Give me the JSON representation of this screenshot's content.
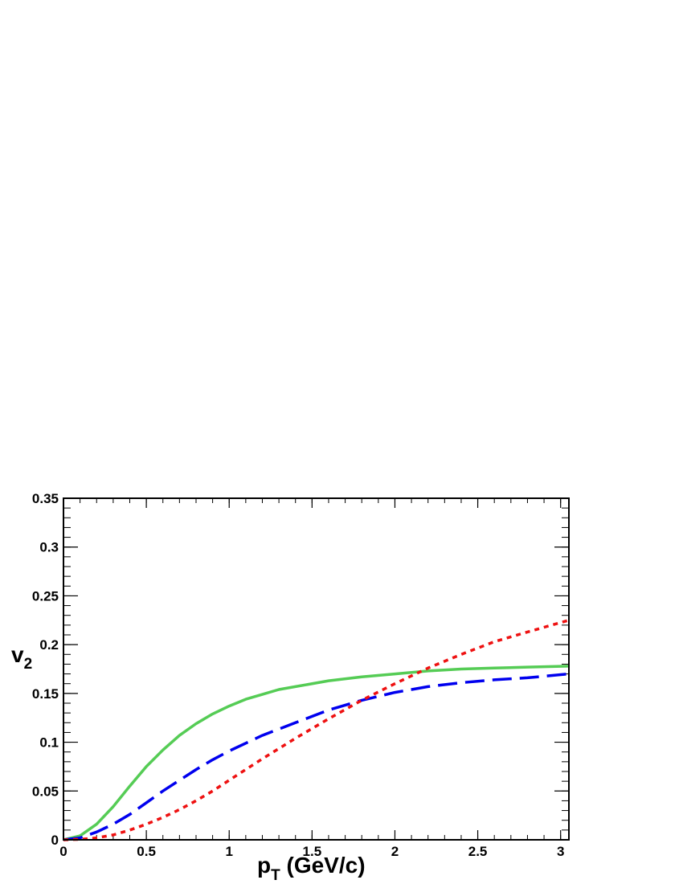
{
  "chart_data": {
    "type": "line",
    "xlabel": {
      "main": "p",
      "sub": "T",
      "unit": " (GeV/c)"
    },
    "ylabel": {
      "main": "v",
      "sub": "2"
    },
    "xlim": [
      0,
      3.05
    ],
    "ylim": [
      0,
      0.35
    ],
    "x_ticks": [
      0,
      0.5,
      1,
      1.5,
      2,
      2.5,
      3
    ],
    "x_tick_labels": [
      "0",
      "0.5",
      "1",
      "1.5",
      "2",
      "2.5",
      "3"
    ],
    "y_ticks": [
      0,
      0.05,
      0.1,
      0.15,
      0.2,
      0.25,
      0.3,
      0.35
    ],
    "y_tick_labels": [
      "0",
      "0.05",
      "0.1",
      "0.15",
      "0.2",
      "0.25",
      "0.3",
      "0.35"
    ],
    "grid": false,
    "legend": "none",
    "series": [
      {
        "color": "#55cc55",
        "style": "solid",
        "x": [
          0,
          0.1,
          0.2,
          0.3,
          0.4,
          0.5,
          0.6,
          0.7,
          0.8,
          0.9,
          1.0,
          1.1,
          1.2,
          1.3,
          1.4,
          1.6,
          1.8,
          2.0,
          2.2,
          2.4,
          2.6,
          2.8,
          3.05
        ],
        "y": [
          0,
          0.004,
          0.016,
          0.034,
          0.055,
          0.075,
          0.092,
          0.107,
          0.119,
          0.129,
          0.137,
          0.144,
          0.149,
          0.154,
          0.157,
          0.163,
          0.167,
          0.17,
          0.173,
          0.175,
          0.176,
          0.177,
          0.178
        ]
      },
      {
        "color": "#0000ee",
        "style": "dashed",
        "x": [
          0,
          0.1,
          0.2,
          0.3,
          0.4,
          0.5,
          0.6,
          0.7,
          0.8,
          0.9,
          1.0,
          1.2,
          1.4,
          1.6,
          1.8,
          2.0,
          2.2,
          2.4,
          2.6,
          2.8,
          3.05
        ],
        "y": [
          0,
          0.002,
          0.008,
          0.016,
          0.026,
          0.038,
          0.05,
          0.061,
          0.072,
          0.082,
          0.091,
          0.107,
          0.12,
          0.133,
          0.143,
          0.151,
          0.157,
          0.161,
          0.164,
          0.166,
          0.17
        ]
      },
      {
        "color": "#ee1111",
        "style": "dotted",
        "x": [
          0,
          0.1,
          0.2,
          0.3,
          0.4,
          0.5,
          0.6,
          0.7,
          0.8,
          0.9,
          1.0,
          1.2,
          1.4,
          1.6,
          1.8,
          2.0,
          2.2,
          2.4,
          2.6,
          2.8,
          3.05
        ],
        "y": [
          0,
          0.0005,
          0.002,
          0.005,
          0.01,
          0.016,
          0.023,
          0.031,
          0.04,
          0.05,
          0.061,
          0.083,
          0.104,
          0.124,
          0.143,
          0.16,
          0.176,
          0.19,
          0.203,
          0.213,
          0.225
        ]
      }
    ]
  }
}
